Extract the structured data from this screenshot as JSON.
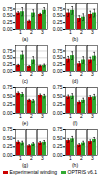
{
  "chart_data": [
    {
      "type": "bar",
      "title": "(a)",
      "categories": [
        "1",
        "2",
        "3"
      ],
      "series": [
        {
          "name": "Experimental winding",
          "color": "#cc0000",
          "values": [
            0.6,
            0.3,
            0.55
          ],
          "error": [
            0.05,
            0.04,
            0.04
          ]
        },
        {
          "name": "OPTRIS v6.1",
          "color": "#33aa33",
          "values": [
            0.65,
            0.6,
            0.7
          ],
          "error": [
            0.15,
            0.12,
            0.1
          ]
        }
      ],
      "ylim": [
        0,
        0.95
      ],
      "yticks": [
        {
          "value": 0,
          "label": "0.00"
        },
        0.25,
        {
          "value": 0.5,
          "label": "0.50"
        },
        0.75
      ],
      "grid": true
    },
    {
      "type": "bar",
      "title": "(b)",
      "categories": [
        "1",
        "2",
        "3"
      ],
      "series": [
        {
          "name": "Experimental winding",
          "color": "#cc0000",
          "values": [
            0.6,
            0.4,
            0.55
          ],
          "error": [
            0.12,
            0.1,
            0.12
          ]
        },
        {
          "name": "OPTRIS v6.1",
          "color": "#33aa33",
          "values": [
            0.7,
            0.45,
            0.6
          ],
          "error": [
            0.14,
            0.12,
            0.14
          ]
        }
      ],
      "ylim": [
        0,
        0.95
      ],
      "yticks": [
        {
          "value": 0,
          "label": "0.00"
        },
        0.25,
        {
          "value": 0.5,
          "label": "0.50"
        },
        0.75
      ],
      "grid": true
    },
    {
      "type": "bar",
      "title": "(c)",
      "categories": [
        "1",
        "2",
        "3"
      ],
      "series": [
        {
          "name": "Experimental winding",
          "color": "#cc0000",
          "values": [
            0.22,
            0.18,
            0.2
          ],
          "error": [
            0.04,
            0.03,
            0.03
          ]
        },
        {
          "name": "OPTRIS v6.1",
          "color": "#33aa33",
          "values": [
            0.6,
            0.42,
            0.22
          ],
          "error": [
            0.14,
            0.12,
            0.05
          ]
        }
      ],
      "ylim": [
        0,
        0.95
      ],
      "yticks": [
        {
          "value": 0,
          "label": "0.00"
        },
        0.25,
        {
          "value": 0.5,
          "label": "0.50"
        },
        0.75
      ],
      "grid": true
    },
    {
      "type": "bar",
      "title": "(d)",
      "categories": [
        "1",
        "2",
        "3"
      ],
      "series": [
        {
          "name": "Experimental winding",
          "color": "#cc0000",
          "values": [
            0.45,
            0.28,
            0.42
          ],
          "error": [
            0.1,
            0.08,
            0.1
          ]
        },
        {
          "name": "OPTRIS v6.1",
          "color": "#33aa33",
          "values": [
            0.58,
            0.42,
            0.56
          ],
          "error": [
            0.14,
            0.12,
            0.14
          ]
        }
      ],
      "ylim": [
        0,
        0.95
      ],
      "yticks": [
        {
          "value": 0,
          "label": "0.00"
        },
        0.25,
        {
          "value": 0.5,
          "label": "0.50"
        },
        0.75
      ],
      "grid": true
    },
    {
      "type": "bar",
      "title": "(e)",
      "categories": [
        "1",
        "2",
        "3"
      ],
      "series": [
        {
          "name": "Experimental winding",
          "color": "#cc0000",
          "values": [
            0.58,
            0.38,
            0.52
          ],
          "error": [
            0.04,
            0.03,
            0.04
          ]
        },
        {
          "name": "OPTRIS v6.1",
          "color": "#33aa33",
          "values": [
            0.55,
            0.36,
            0.5
          ],
          "error": [
            0.05,
            0.04,
            0.05
          ]
        }
      ],
      "ylim": [
        0,
        0.75
      ],
      "yticks": [
        {
          "value": 0,
          "label": "0.00"
        },
        0.25,
        {
          "value": 0.5,
          "label": "0.50"
        },
        0.75
      ],
      "grid": true
    },
    {
      "type": "bar",
      "title": "(f)",
      "categories": [
        "1",
        "2",
        "3"
      ],
      "series": [
        {
          "name": "Experimental winding",
          "color": "#cc0000",
          "values": [
            0.48,
            0.32,
            0.46
          ],
          "error": [
            0.05,
            0.04,
            0.05
          ]
        },
        {
          "name": "OPTRIS v6.1",
          "color": "#33aa33",
          "values": [
            0.5,
            0.38,
            0.48
          ],
          "error": [
            0.07,
            0.06,
            0.07
          ]
        }
      ],
      "ylim": [
        0,
        0.75
      ],
      "yticks": [
        {
          "value": 0,
          "label": "0.00"
        },
        0.25,
        {
          "value": 0.5,
          "label": "0.50"
        },
        0.75
      ],
      "grid": true
    },
    {
      "type": "bar",
      "title": "(g)",
      "categories": [
        "1",
        "2",
        "3"
      ],
      "series": [
        {
          "name": "Experimental winding",
          "color": "#cc0000",
          "values": [
            0.38,
            0.28,
            0.36
          ],
          "error": [
            0.04,
            0.03,
            0.04
          ]
        },
        {
          "name": "OPTRIS v6.1",
          "color": "#33aa33",
          "values": [
            0.36,
            0.33,
            0.38
          ],
          "error": [
            0.05,
            0.04,
            0.05
          ]
        }
      ],
      "ylim": [
        0,
        0.75
      ],
      "yticks": [
        {
          "value": 0,
          "label": "0.00"
        },
        0.25,
        {
          "value": 0.5,
          "label": "0.50"
        },
        0.75
      ],
      "grid": true
    },
    {
      "type": "bar",
      "title": "(h)",
      "categories": [
        "1",
        "2",
        "3"
      ],
      "series": [
        {
          "name": "Experimental winding",
          "color": "#cc0000",
          "values": [
            0.43,
            0.3,
            0.4
          ],
          "error": [
            0.05,
            0.04,
            0.05
          ]
        },
        {
          "name": "OPTRIS v6.1",
          "color": "#33aa33",
          "values": [
            0.48,
            0.36,
            0.46
          ],
          "error": [
            0.07,
            0.05,
            0.06
          ]
        }
      ],
      "ylim": [
        0,
        0.75
      ],
      "yticks": [
        {
          "value": 0,
          "label": "0.00"
        },
        0.25,
        {
          "value": 0.5,
          "label": "0.50"
        },
        0.75
      ],
      "grid": true,
      "legend": "bottom"
    }
  ]
}
